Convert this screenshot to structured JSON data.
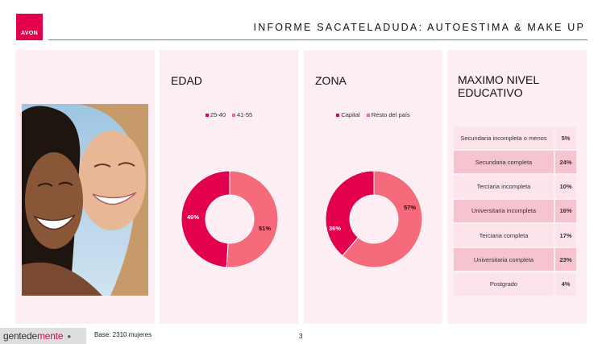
{
  "brand": {
    "logo_text": "AVON"
  },
  "header": {
    "title": "INFORME SACATELADUDA: AUTOESTIMA  & MAKE UP"
  },
  "colors": {
    "primary": "#e3004f",
    "secondary": "#f56b7b",
    "panel_bg": "#fdeef3"
  },
  "panels": {
    "edad": {
      "title": "EDAD"
    },
    "zona": {
      "title": "ZONA"
    },
    "educacion": {
      "title": "MAXIMO NIVEL EDUCATIVO"
    }
  },
  "chart_data": [
    {
      "type": "pie",
      "title": "EDAD",
      "categories": [
        "25-40",
        "41-55"
      ],
      "values": [
        49,
        51
      ],
      "labels": [
        "49%",
        "51%"
      ],
      "legend": "top"
    },
    {
      "type": "pie",
      "title": "ZONA",
      "categories": [
        "Capital",
        "Resto del país"
      ],
      "values": [
        36,
        57
      ],
      "labels": [
        "36%",
        "57%"
      ],
      "legend": "top"
    },
    {
      "type": "table",
      "title": "MAXIMO NIVEL EDUCATIVO",
      "rows": [
        {
          "label": "Secundaria incompleta o menos",
          "value": "5%"
        },
        {
          "label": "Secundaria completa",
          "value": "24%"
        },
        {
          "label": "Terciaria incompleta",
          "value": "10%"
        },
        {
          "label": "Universitaria incompleta",
          "value": "16%"
        },
        {
          "label": "Terciaria completa",
          "value": "17%"
        },
        {
          "label": "Universitaria completa",
          "value": "23%"
        },
        {
          "label": "Postgrado",
          "value": "4%"
        }
      ]
    }
  ],
  "footer": {
    "brand_part1": "gentede",
    "brand_part2": "mente",
    "base": "Base: 2310 mujeres",
    "page_number": "3"
  }
}
